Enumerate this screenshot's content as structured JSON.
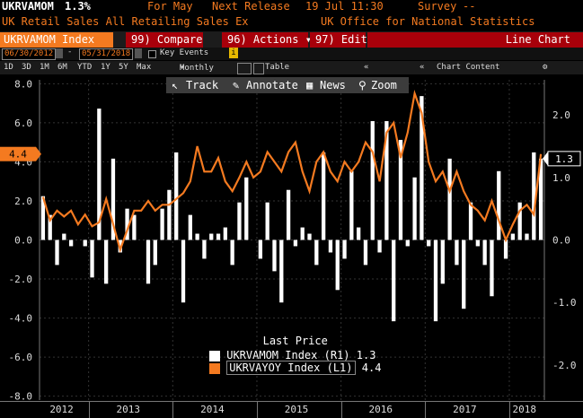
{
  "header": {
    "ticker": "UKRVAMOM",
    "value": "1.3%",
    "for_label": "For May",
    "next_release_label": "Next Release",
    "next_release_value": "19 Jul 11:30",
    "survey_label": "Survey",
    "survey_value": "--",
    "security_name": "UK Retail Sales All Retailing Sales Ex",
    "source": "UK Office for National Statistics"
  },
  "toolbar": {
    "ticker_field": "UKRVAMOM Index",
    "compare_label": "Compare",
    "compare_num": "99)",
    "actions_label": "Actions",
    "actions_num": "96)",
    "edit_label": "Edit",
    "edit_num": "97)",
    "view_mode": "Line Chart"
  },
  "range_bar": {
    "start_date": "06/30/2012",
    "end_date": "05/31/2018",
    "key_events": "Key Events"
  },
  "period_bar": {
    "periods": [
      "1D",
      "3D",
      "1M",
      "6M",
      "YTD",
      "1Y",
      "5Y",
      "Max"
    ],
    "frequency": "Monthly",
    "table_label": "Table",
    "chart_content_label": "Chart Content"
  },
  "chart_tools": {
    "track": "Track",
    "annotate": "Annotate",
    "news": "News",
    "zoom": "Zoom"
  },
  "colors": {
    "bars": "#ffffff",
    "line": "#f47a20",
    "ticker_bg": "#f47a20",
    "button_bg": "#a8000a",
    "header_text": "#f47a20"
  },
  "chart_data": {
    "type": "bar+line",
    "title": "",
    "legend_title": "Last Price",
    "x": [
      "2012-06",
      "2012-07",
      "2012-08",
      "2012-09",
      "2012-10",
      "2012-11",
      "2012-12",
      "2013-01",
      "2013-02",
      "2013-03",
      "2013-04",
      "2013-05",
      "2013-06",
      "2013-07",
      "2013-08",
      "2013-09",
      "2013-10",
      "2013-11",
      "2013-12",
      "2014-01",
      "2014-02",
      "2014-03",
      "2014-04",
      "2014-05",
      "2014-06",
      "2014-07",
      "2014-08",
      "2014-09",
      "2014-10",
      "2014-11",
      "2014-12",
      "2015-01",
      "2015-02",
      "2015-03",
      "2015-04",
      "2015-05",
      "2015-06",
      "2015-07",
      "2015-08",
      "2015-09",
      "2015-10",
      "2015-11",
      "2015-12",
      "2016-01",
      "2016-02",
      "2016-03",
      "2016-04",
      "2016-05",
      "2016-06",
      "2016-07",
      "2016-08",
      "2016-09",
      "2016-10",
      "2016-11",
      "2016-12",
      "2017-01",
      "2017-02",
      "2017-03",
      "2017-04",
      "2017-05",
      "2017-06",
      "2017-07",
      "2017-08",
      "2017-09",
      "2017-10",
      "2017-11",
      "2017-12",
      "2018-01",
      "2018-02",
      "2018-03",
      "2018-04",
      "2018-05"
    ],
    "x_tick_labels": [
      "2012",
      "2013",
      "2014",
      "2015",
      "2016",
      "2017",
      "2018"
    ],
    "series": [
      {
        "name": "UKRVAMOM Index (R1)",
        "last": "1.3",
        "axis": "right",
        "kind": "bar",
        "values": [
          0.7,
          0.4,
          -0.4,
          0.1,
          -0.1,
          0.0,
          -0.1,
          -0.6,
          2.1,
          -0.7,
          1.3,
          -0.2,
          0.5,
          0.4,
          0.0,
          -0.7,
          -0.4,
          0.5,
          0.8,
          1.4,
          -1.0,
          0.4,
          0.1,
          -0.3,
          0.1,
          0.1,
          0.2,
          -0.4,
          0.6,
          1.0,
          0.0,
          -0.3,
          0.6,
          -0.5,
          -1.0,
          0.8,
          -0.1,
          0.2,
          0.1,
          -0.4,
          1.4,
          -0.2,
          -0.8,
          -0.3,
          1.1,
          0.2,
          -0.4,
          1.9,
          -0.2,
          1.9,
          -1.3,
          1.6,
          -0.1,
          1.0,
          2.3,
          -0.1,
          -1.3,
          -0.7,
          1.3,
          -0.4,
          -1.1,
          0.6,
          -0.1,
          -0.4,
          -0.9,
          1.1,
          -0.3,
          0.1,
          0.6,
          0.1,
          1.4,
          1.3
        ]
      },
      {
        "name": "UKRVAYOY Index (L1)",
        "last": "4.4",
        "axis": "left",
        "kind": "line",
        "values": [
          2.2,
          1.0,
          1.5,
          1.2,
          1.5,
          0.8,
          1.3,
          0.7,
          0.9,
          2.1,
          0.8,
          -0.5,
          0.5,
          1.5,
          1.5,
          2.0,
          1.5,
          1.8,
          1.8,
          2.1,
          2.4,
          3.0,
          4.8,
          3.5,
          3.5,
          4.2,
          3.0,
          2.5,
          3.2,
          4.0,
          3.2,
          3.5,
          4.5,
          4.0,
          3.5,
          4.5,
          5.0,
          3.5,
          2.5,
          4.0,
          4.5,
          3.5,
          3.0,
          4.0,
          3.5,
          4.0,
          5.0,
          4.5,
          3.0,
          5.5,
          6.0,
          4.2,
          5.5,
          7.5,
          6.5,
          4.0,
          3.0,
          3.5,
          2.5,
          3.5,
          2.5,
          1.8,
          1.5,
          1.0,
          2.0,
          1.0,
          0.0,
          0.8,
          1.5,
          1.8,
          1.3,
          4.4
        ]
      }
    ],
    "left_axis": {
      "range": [
        -8.2,
        8.2
      ],
      "ticks": [
        "8.0",
        "6.0",
        "4.0",
        "2.0",
        "0.0",
        "-2.0",
        "-4.0",
        "-6.0",
        "-8.0"
      ],
      "current_label": "4.4"
    },
    "right_axis": {
      "range": [
        -2.56,
        2.56
      ],
      "ticks": [
        "2.0",
        "1.0",
        "0.0",
        "-1.0",
        "-2.0"
      ],
      "current_label": "1.3"
    },
    "grid": true,
    "legend_position": "bottom-center"
  }
}
